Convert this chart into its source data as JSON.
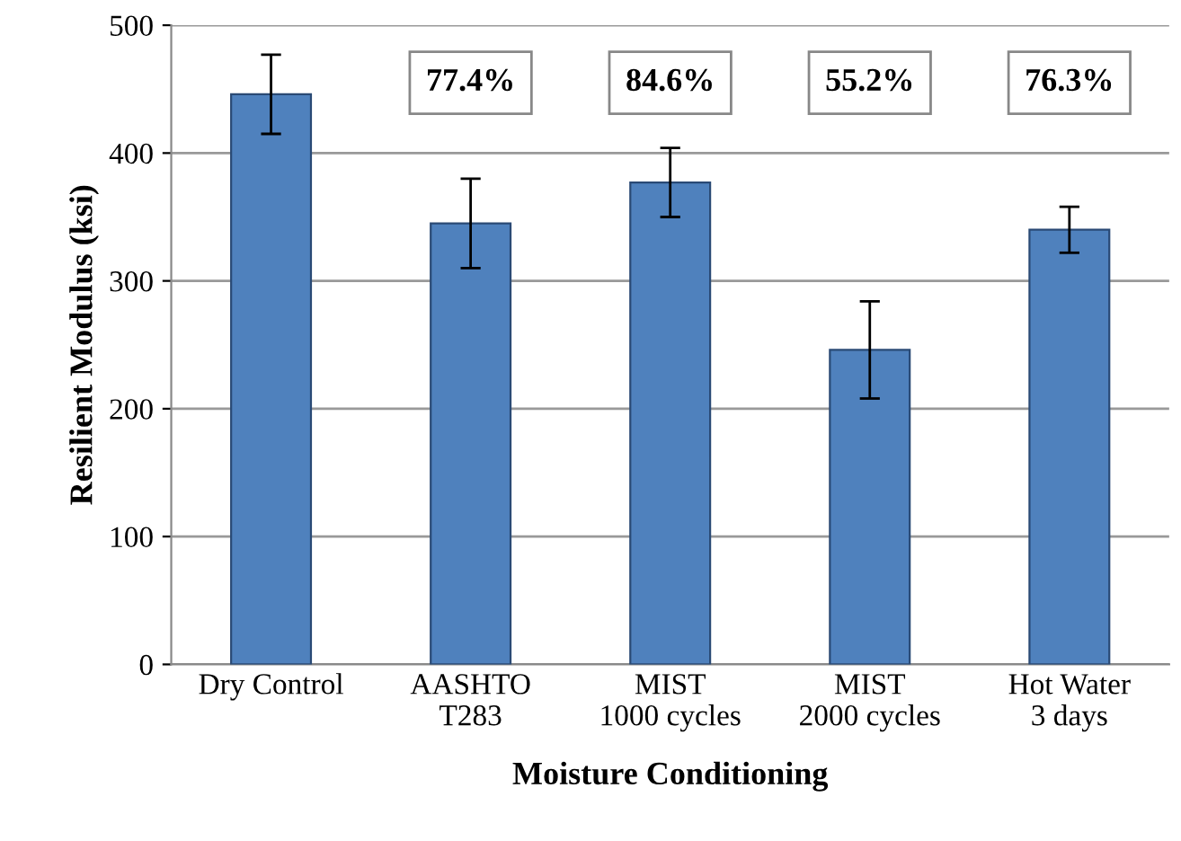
{
  "chart_data": {
    "type": "bar",
    "xlabel": "Moisture Conditioning",
    "ylabel": "Resilient Modulus (ksi)",
    "categories": [
      "Dry Control",
      "AASHTO\nT283",
      "MIST\n1000 cycles",
      "MIST\n2000 cycles",
      "Hot Water\n3 days"
    ],
    "values": [
      446,
      345,
      377,
      246,
      340
    ],
    "errors": [
      31,
      35,
      27,
      38,
      18
    ],
    "color": "#4f81bd",
    "ylim": [
      0,
      500
    ],
    "yticks": [
      0,
      100,
      200,
      300,
      400,
      500
    ],
    "grid": "y",
    "annotations": [
      "77.4%",
      "84.6%",
      "55.2%",
      "76.3%"
    ]
  }
}
